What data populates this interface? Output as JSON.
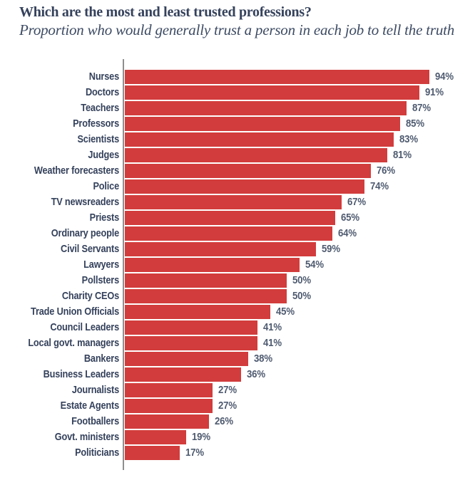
{
  "chart_data": {
    "type": "bar",
    "orientation": "horizontal",
    "title": "Which are the most and least trusted professions?",
    "subtitle": "Proportion who would generally trust a person in each job to tell the truth",
    "categories": [
      "Nurses",
      "Doctors",
      "Teachers",
      "Professors",
      "Scientists",
      "Judges",
      "Weather forecasters",
      "Police",
      "TV newsreaders",
      "Priests",
      "Ordinary people",
      "Civil Servants",
      "Lawyers",
      "Pollsters",
      "Charity CEOs",
      "Trade Union Officials",
      "Council Leaders",
      "Local govt. managers",
      "Bankers",
      "Business Leaders",
      "Journalists",
      "Estate Agents",
      "Footballers",
      "Govt. ministers",
      "Politicians"
    ],
    "values": [
      94,
      91,
      87,
      85,
      83,
      81,
      76,
      74,
      67,
      65,
      64,
      59,
      54,
      50,
      50,
      45,
      41,
      41,
      38,
      36,
      27,
      27,
      26,
      19,
      17
    ],
    "value_suffix": "%",
    "xlim": [
      0,
      100
    ],
    "grid": "off",
    "legend": "none",
    "colors": {
      "bar": "#d23c3c",
      "title": "#35425c",
      "subtitle": "#3d4b63",
      "label": "#35425c",
      "value": "#4f5b70",
      "axis": "#8e8e8e",
      "background": "#ffffff"
    }
  }
}
